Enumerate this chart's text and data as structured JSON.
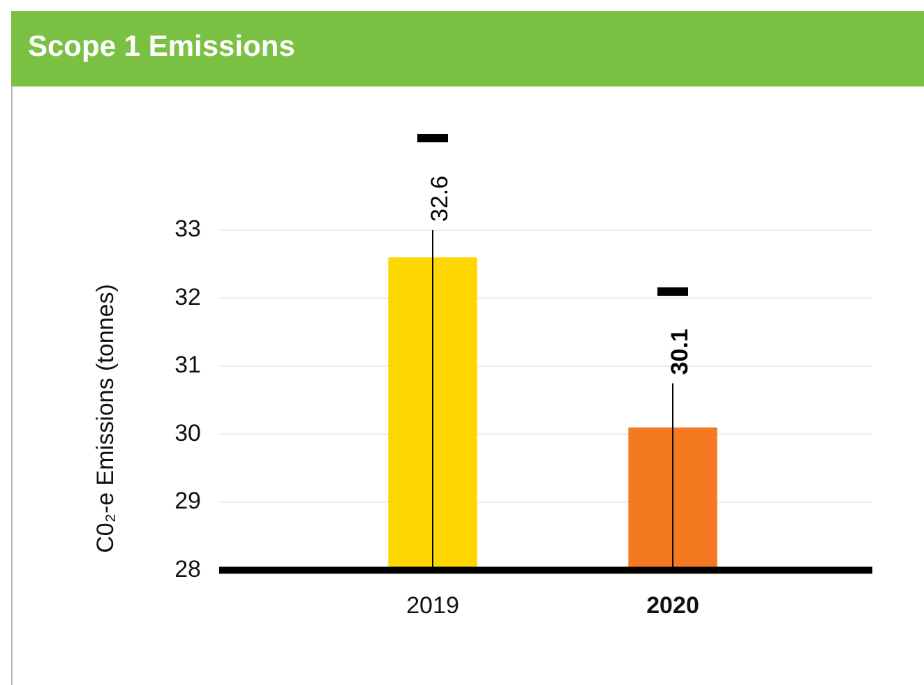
{
  "chart_data": {
    "type": "bar",
    "title": "Scope 1 Emissions",
    "ylabel": "C0₂-e Emissions (tonnes)",
    "categories": [
      "2019",
      "2020"
    ],
    "values": [
      32.6,
      30.1
    ],
    "colors": [
      "#ffd700",
      "#f47920"
    ],
    "errors": [
      [
        28,
        33
      ],
      [
        28,
        30.75
      ]
    ],
    "data_labels": true,
    "ylim": [
      28,
      33
    ],
    "yticks": [
      28,
      29,
      30,
      31,
      32,
      33
    ],
    "grid": "y",
    "legend": false
  }
}
